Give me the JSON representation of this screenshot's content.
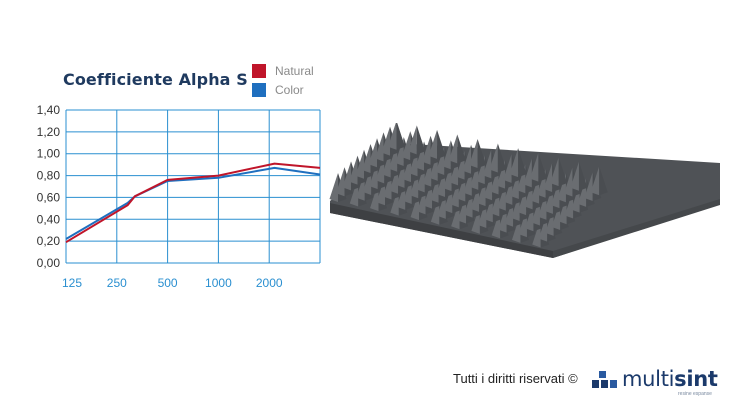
{
  "chart_data": {
    "type": "line",
    "title": "Coefficiente Alpha S",
    "x_scale": "log",
    "categories": [
      "125",
      "250",
      "500",
      "1000",
      "2000"
    ],
    "y_ticks": [
      "1,40",
      "1,20",
      "1,00",
      "0,80",
      "0,60",
      "0,40",
      "0,20",
      "0,00"
    ],
    "ylim": [
      0,
      1.4
    ],
    "xlim": [
      125,
      4000
    ],
    "grid": true,
    "legend_position": "top-right",
    "series": [
      {
        "name": "Natural",
        "color": "#c0152a",
        "points": [
          [
            125,
            0.19
          ],
          [
            290,
            0.53
          ],
          [
            320,
            0.61
          ],
          [
            500,
            0.76
          ],
          [
            1000,
            0.8
          ],
          [
            2150,
            0.91
          ],
          [
            4000,
            0.87
          ]
        ]
      },
      {
        "name": "Color",
        "color": "#1f6fbf",
        "points": [
          [
            125,
            0.22
          ],
          [
            290,
            0.55
          ],
          [
            320,
            0.61
          ],
          [
            500,
            0.75
          ],
          [
            1000,
            0.78
          ],
          [
            2150,
            0.87
          ],
          [
            4000,
            0.81
          ]
        ]
      }
    ]
  },
  "product_image": {
    "description_icon": "pyramid-foam-panel",
    "color": "#5c5f63"
  },
  "footer": {
    "text": "Tutti i diritti riservati ©"
  },
  "logo": {
    "word1": "multi",
    "word2": "sint",
    "tagline": "resine espanse",
    "color": "#1b3a6b",
    "icon": "cubes-icon"
  }
}
